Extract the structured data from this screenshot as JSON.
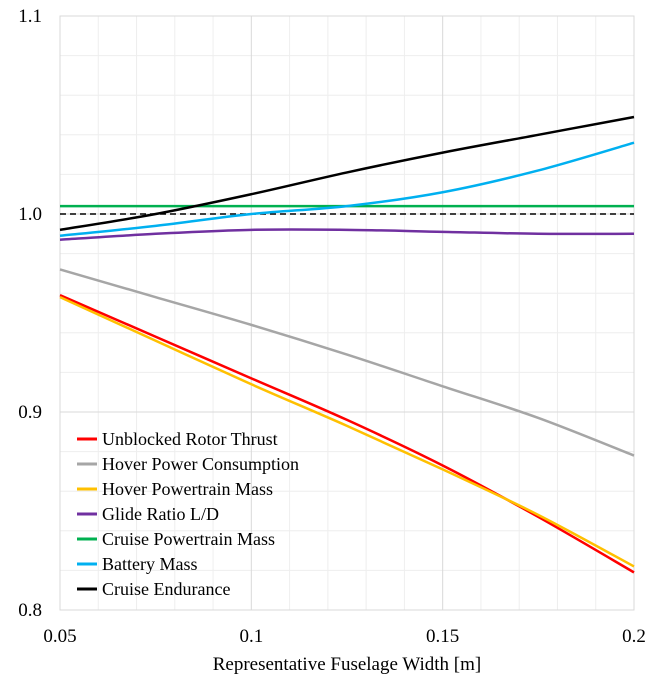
{
  "chart_data": {
    "type": "line",
    "title": "",
    "xlabel": "Representative Fuselage Width [m]",
    "ylabel": "",
    "xlim": [
      0.05,
      0.2
    ],
    "ylim": [
      0.8,
      1.1
    ],
    "x_ticks": [
      0.05,
      0.1,
      0.15,
      0.2
    ],
    "x_tick_labels": [
      "0.05",
      "0.1",
      "0.15",
      "0.2"
    ],
    "y_ticks": [
      0.8,
      0.9,
      1.0,
      1.1
    ],
    "y_tick_labels": [
      "0.8",
      "0.9",
      "1.0",
      "1.1"
    ],
    "grid": true,
    "minor_grid": true,
    "legend_position": "bottom-left",
    "reference_line": {
      "y": 1.0,
      "style": "dashed",
      "color": "#000000"
    },
    "series": [
      {
        "name": "Unblocked Rotor Thrust",
        "color": "#ff0000",
        "x": [
          0.05,
          0.075,
          0.1,
          0.125,
          0.15,
          0.175,
          0.2
        ],
        "y": [
          0.959,
          0.938,
          0.917,
          0.896,
          0.873,
          0.847,
          0.819
        ]
      },
      {
        "name": "Hover Power Consumption",
        "color": "#a6a6a6",
        "x": [
          0.05,
          0.075,
          0.1,
          0.125,
          0.15,
          0.175,
          0.2
        ],
        "y": [
          0.972,
          0.958,
          0.944,
          0.929,
          0.913,
          0.897,
          0.878
        ]
      },
      {
        "name": "Hover Powertrain Mass",
        "color": "#ffc000",
        "x": [
          0.05,
          0.075,
          0.1,
          0.125,
          0.15,
          0.175,
          0.2
        ],
        "y": [
          0.958,
          0.936,
          0.914,
          0.893,
          0.871,
          0.848,
          0.822
        ]
      },
      {
        "name": "Glide Ratio L/D",
        "color": "#7030a0",
        "x": [
          0.05,
          0.075,
          0.1,
          0.125,
          0.15,
          0.175,
          0.2
        ],
        "y": [
          0.987,
          0.99,
          0.992,
          0.992,
          0.991,
          0.99,
          0.99
        ]
      },
      {
        "name": "Cruise Powertrain Mass",
        "color": "#00b050",
        "x": [
          0.05,
          0.075,
          0.1,
          0.125,
          0.15,
          0.175,
          0.2
        ],
        "y": [
          1.004,
          1.004,
          1.004,
          1.004,
          1.004,
          1.004,
          1.004
        ]
      },
      {
        "name": "Battery Mass",
        "color": "#00b0f0",
        "x": [
          0.05,
          0.075,
          0.1,
          0.125,
          0.15,
          0.175,
          0.2
        ],
        "y": [
          0.989,
          0.994,
          1.0,
          1.004,
          1.011,
          1.022,
          1.036
        ]
      },
      {
        "name": "Cruise Endurance",
        "color": "#000000",
        "x": [
          0.05,
          0.075,
          0.1,
          0.125,
          0.15,
          0.175,
          0.2
        ],
        "y": [
          0.992,
          1.0,
          1.01,
          1.021,
          1.031,
          1.04,
          1.049
        ]
      }
    ]
  }
}
